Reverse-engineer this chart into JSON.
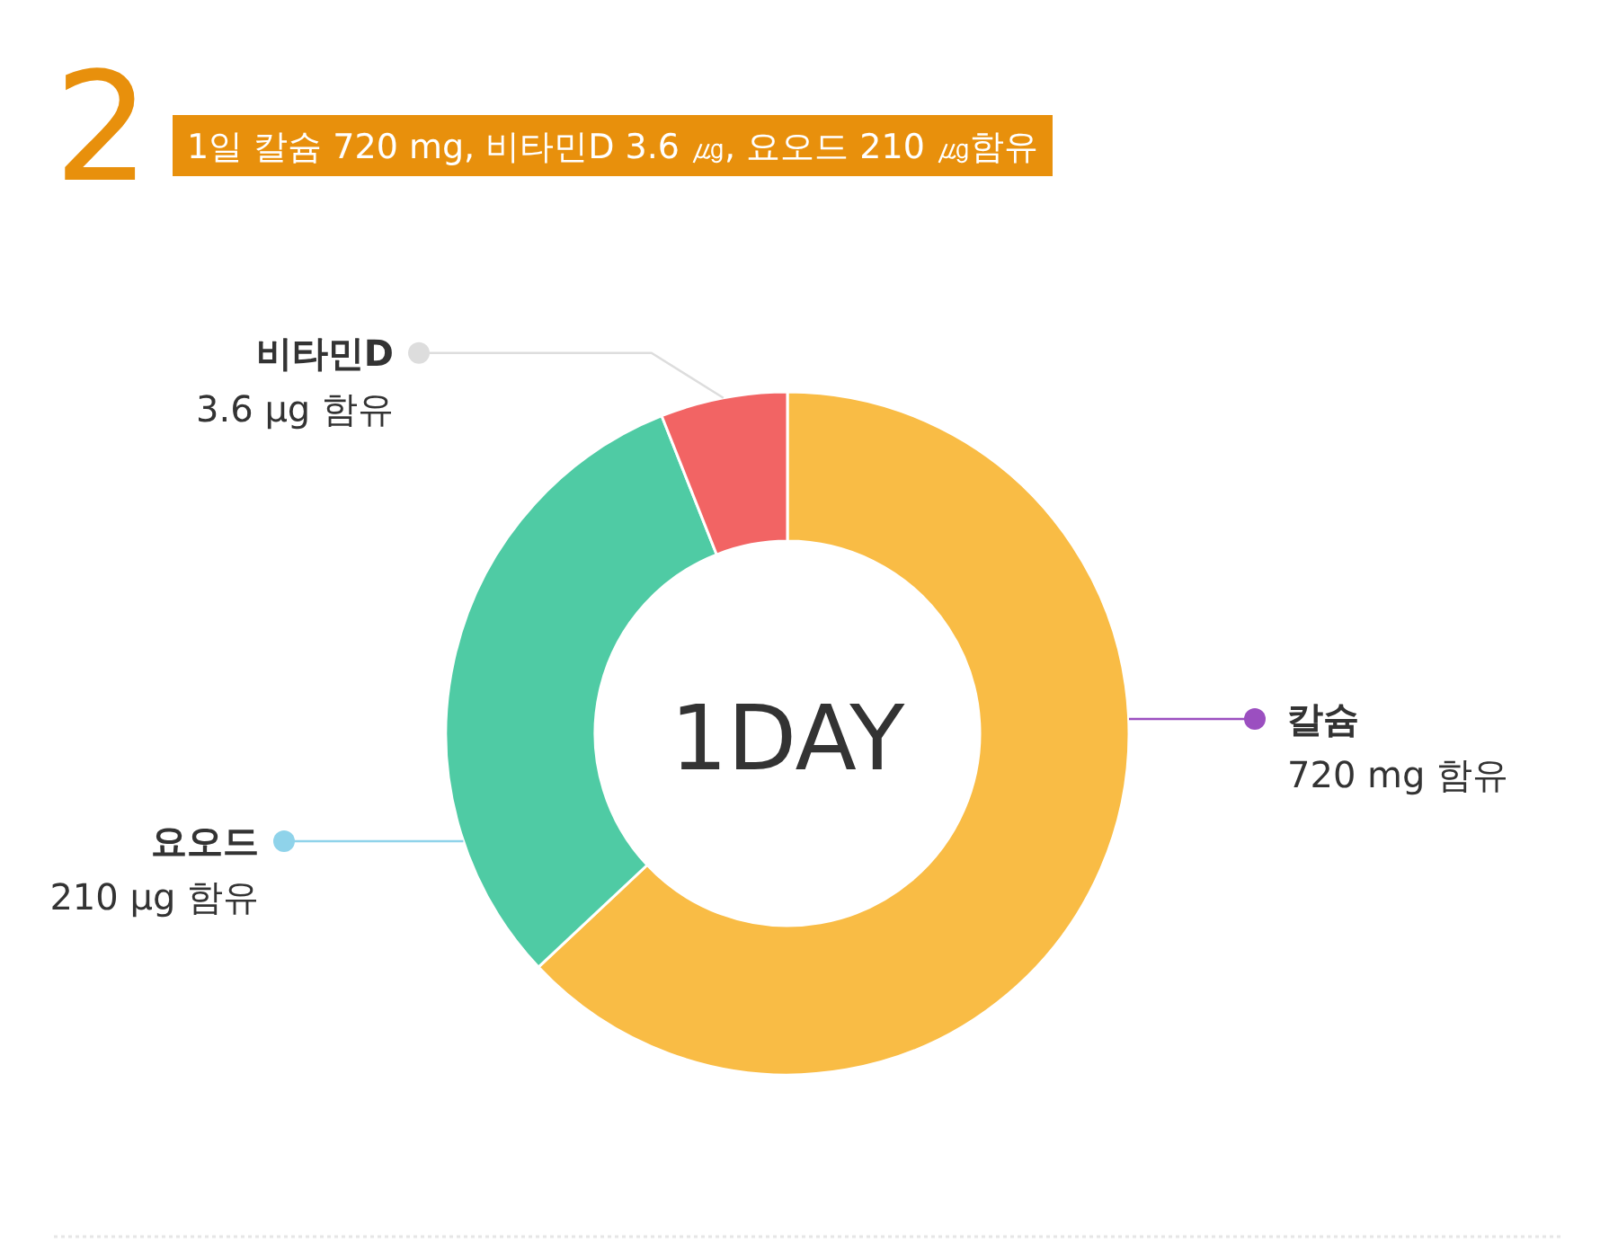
{
  "chart_data": {
    "type": "donut",
    "title": "2",
    "subtitle": "1일 칼슘 720 mg, 비타민D 3.6 ㎍, 요오드 210 ㎍함유",
    "categories": [
      "칼슘",
      "요오드",
      "비타민D"
    ],
    "values": [
      63,
      31,
      6
    ],
    "colors": [
      "#f9bc45",
      "#4fcba4",
      "#f26464"
    ],
    "annotations": [
      "720 mg 함유",
      "210 μg 함유",
      "3.6 μg 함유",
      "1DAY"
    ]
  }
}
